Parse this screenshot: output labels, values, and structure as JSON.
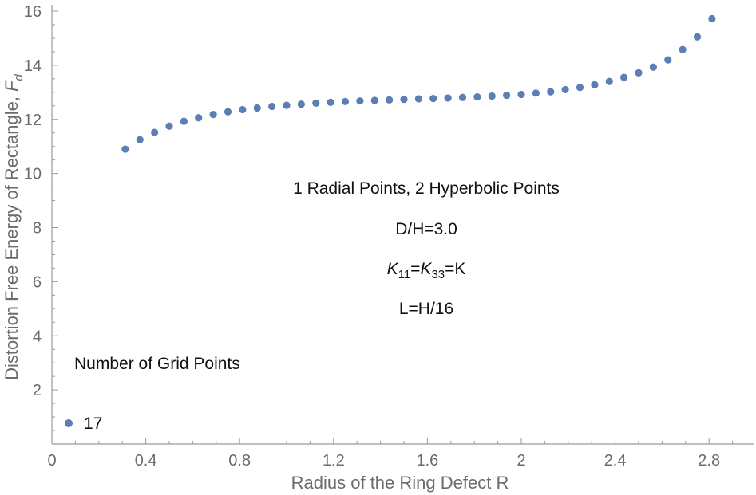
{
  "chart_data": {
    "type": "scatter",
    "xlabel": "Radius of the Ring Defect R",
    "ylabel_main": "Distortion Free Energy of Rectangle, ",
    "ylabel_symbol": "F",
    "ylabel_sub": "d",
    "xlim": [
      0,
      3.0
    ],
    "ylim": [
      0,
      16
    ],
    "x_ticks": [
      0,
      0.4,
      0.8,
      1.2,
      1.6,
      2,
      2.4,
      2.8
    ],
    "x_tick_labels": [
      "0",
      "0.4",
      "0.8",
      "1.2",
      "1.6",
      "2",
      "2.4",
      "2.8"
    ],
    "y_ticks": [
      2,
      4,
      6,
      8,
      10,
      12,
      14,
      16
    ],
    "y_tick_labels": [
      "2",
      "4",
      "6",
      "8",
      "10",
      "12",
      "14",
      "16"
    ],
    "grid": false,
    "legend": {
      "title": "Number of Grid Points",
      "placement": "bottom-left",
      "entries": [
        {
          "label": "17",
          "color": "#5b7fb5"
        }
      ]
    },
    "annotations": {
      "line1": "1 Radial Points, 2 Hyperbolic Points",
      "line2": "D/H=3.0",
      "line3_k1": "K",
      "line3_k1_sub": "11",
      "line3_eq1": "=",
      "line3_k2": "K",
      "line3_k2_sub": "33",
      "line3_eq2": "=K",
      "line4": "L=H/16"
    },
    "series": [
      {
        "name": "17",
        "color": "#5b7fb5",
        "x": [
          0.3125,
          0.375,
          0.4375,
          0.5,
          0.5625,
          0.625,
          0.6875,
          0.75,
          0.8125,
          0.875,
          0.9375,
          1.0,
          1.0625,
          1.125,
          1.1875,
          1.25,
          1.3125,
          1.375,
          1.4375,
          1.5,
          1.5625,
          1.625,
          1.6875,
          1.75,
          1.8125,
          1.875,
          1.9375,
          2.0,
          2.0625,
          2.125,
          2.1875,
          2.25,
          2.3125,
          2.375,
          2.4375,
          2.5,
          2.5625,
          2.625,
          2.6875,
          2.75,
          2.8125
        ],
        "y": [
          10.9,
          11.25,
          11.52,
          11.75,
          11.93,
          12.06,
          12.18,
          12.28,
          12.36,
          12.42,
          12.48,
          12.52,
          12.56,
          12.6,
          12.63,
          12.66,
          12.68,
          12.7,
          12.72,
          12.74,
          12.76,
          12.77,
          12.79,
          12.81,
          12.83,
          12.86,
          12.89,
          12.92,
          12.97,
          13.02,
          13.1,
          13.18,
          13.28,
          13.4,
          13.55,
          13.72,
          13.93,
          14.2,
          14.58,
          15.05,
          15.72
        ]
      }
    ]
  }
}
